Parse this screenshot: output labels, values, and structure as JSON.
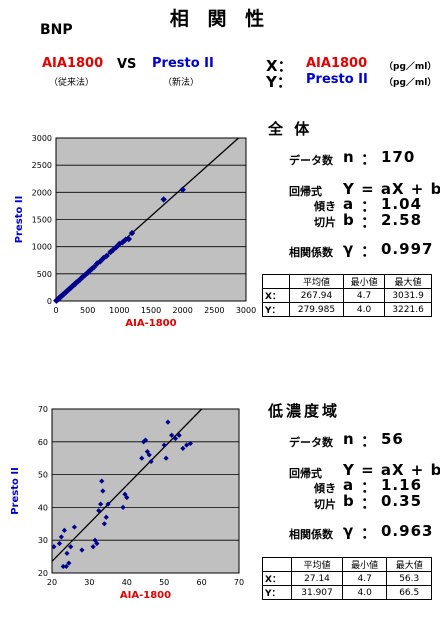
{
  "header": {
    "title": "相 関 性",
    "analyte": "BNP",
    "x_method": "AIA1800",
    "x_method_note": "（従来法）",
    "vs": "VS",
    "y_method": "Presto II",
    "y_method_note": "（新法）",
    "x_prefix": "X：",
    "y_prefix": "Y：",
    "x_label": "AIA1800",
    "y_label": "Presto II",
    "unit": "（pg／ml）",
    "unit2": "（pg／ml）"
  },
  "sections": [
    {
      "title": "全 体",
      "n_label": "データ数",
      "n_sym": "n",
      "n": "170",
      "eq_label": "回帰式",
      "eq": "Y = aX + b",
      "a_label": "傾き",
      "a_sym": "a",
      "a": "1.04",
      "b_label": "切片",
      "b_sym": "b",
      "b": "2.58",
      "r_label": "相関係数",
      "r_sym": "γ",
      "r": "0.997",
      "table": {
        "head": [
          "",
          "平均値",
          "最小値",
          "最大値"
        ],
        "rows": [
          [
            "X：",
            "267.94",
            "4.7",
            "3031.9"
          ],
          [
            "Y：",
            "279.985",
            "4.0",
            "3221.6"
          ]
        ]
      }
    },
    {
      "title": "低濃度域",
      "n_label": "データ数",
      "n_sym": "n",
      "n": "56",
      "eq_label": "回帰式",
      "eq": "Y = aX + b",
      "a_label": "傾き",
      "a_sym": "a",
      "a": "1.16",
      "b_label": "切片",
      "b_sym": "b",
      "b": "0.35",
      "r_label": "相関係数",
      "r_sym": "γ",
      "r": "0.963",
      "table": {
        "head": [
          "",
          "平均値",
          "最小値",
          "最大値"
        ],
        "rows": [
          [
            "X：",
            "27.14",
            "4.7",
            "56.3"
          ],
          [
            "Y：",
            "31.907",
            "4.0",
            "66.5"
          ]
        ]
      }
    }
  ],
  "colors": {
    "x_method": "#e00000",
    "y_method": "#0000cc",
    "plot_bg": "#c0c0c0",
    "points": "#00008b"
  },
  "chart_data": [
    {
      "type": "scatter",
      "xlabel": "AIA-1800",
      "ylabel": "Presto II",
      "xlim": [
        0,
        3000
      ],
      "ylim": [
        0,
        3000
      ],
      "xticks": [
        0,
        500,
        1000,
        1500,
        2000,
        2500,
        3000
      ],
      "yticks": [
        0,
        500,
        1000,
        1500,
        2000,
        2500,
        3000
      ],
      "grid": true,
      "regression": {
        "a": 1.04,
        "b": 2.58
      },
      "points": [
        [
          5,
          6
        ],
        [
          8,
          10
        ],
        [
          12,
          14
        ],
        [
          15,
          17
        ],
        [
          20,
          22
        ],
        [
          25,
          28
        ],
        [
          30,
          33
        ],
        [
          35,
          38
        ],
        [
          42,
          45
        ],
        [
          50,
          55
        ],
        [
          55,
          58
        ],
        [
          60,
          66
        ],
        [
          70,
          72
        ],
        [
          80,
          85
        ],
        [
          90,
          95
        ],
        [
          100,
          105
        ],
        [
          110,
          118
        ],
        [
          120,
          126
        ],
        [
          135,
          140
        ],
        [
          150,
          158
        ],
        [
          165,
          172
        ],
        [
          180,
          190
        ],
        [
          200,
          210
        ],
        [
          220,
          232
        ],
        [
          240,
          250
        ],
        [
          260,
          275
        ],
        [
          280,
          295
        ],
        [
          300,
          310
        ],
        [
          320,
          340
        ],
        [
          350,
          365
        ],
        [
          380,
          395
        ],
        [
          400,
          420
        ],
        [
          430,
          450
        ],
        [
          460,
          480
        ],
        [
          500,
          520
        ],
        [
          530,
          555
        ],
        [
          560,
          585
        ],
        [
          600,
          625
        ],
        [
          650,
          690
        ],
        [
          700,
          730
        ],
        [
          750,
          790
        ],
        [
          800,
          830
        ],
        [
          860,
          900
        ],
        [
          900,
          940
        ],
        [
          950,
          990
        ],
        [
          1000,
          1050
        ],
        [
          1050,
          1080
        ],
        [
          1100,
          1130
        ],
        [
          1150,
          1140
        ],
        [
          1200,
          1250
        ],
        [
          1700,
          1870
        ],
        [
          2000,
          2050
        ]
      ]
    },
    {
      "type": "scatter",
      "xlabel": "AIA-1800",
      "ylabel": "Presto II",
      "xlim": [
        20,
        70
      ],
      "ylim": [
        20,
        70
      ],
      "xticks": [
        20,
        30,
        40,
        50,
        60,
        70
      ],
      "yticks": [
        20,
        30,
        40,
        50,
        60,
        70
      ],
      "grid": true,
      "regression": {
        "a": 1.16,
        "b": 0.35
      },
      "points": [
        [
          20.5,
          28
        ],
        [
          22,
          29
        ],
        [
          22.5,
          31
        ],
        [
          23,
          22
        ],
        [
          23.3,
          33
        ],
        [
          23.8,
          22
        ],
        [
          24,
          26
        ],
        [
          24.5,
          23
        ],
        [
          25,
          28
        ],
        [
          26,
          34
        ],
        [
          28,
          27
        ],
        [
          31,
          28
        ],
        [
          31.5,
          30
        ],
        [
          32,
          29
        ],
        [
          32.5,
          39
        ],
        [
          33,
          41
        ],
        [
          33.3,
          48
        ],
        [
          33.6,
          45
        ],
        [
          34,
          35
        ],
        [
          34.5,
          37
        ],
        [
          35,
          41
        ],
        [
          39,
          40
        ],
        [
          39.5,
          44
        ],
        [
          40,
          43
        ],
        [
          44,
          55
        ],
        [
          44.5,
          60
        ],
        [
          45,
          60.5
        ],
        [
          45.5,
          57
        ],
        [
          46,
          56
        ],
        [
          46.5,
          54
        ],
        [
          50,
          59
        ],
        [
          50.5,
          55
        ],
        [
          51,
          66
        ],
        [
          52,
          62
        ],
        [
          53,
          61
        ],
        [
          54,
          62
        ],
        [
          55,
          58
        ],
        [
          56,
          59
        ],
        [
          57,
          59.5
        ]
      ]
    }
  ]
}
